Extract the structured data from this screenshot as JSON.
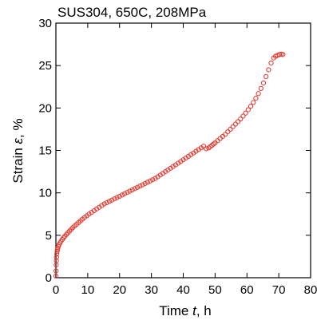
{
  "chart_data": {
    "type": "scatter",
    "title": "SUS304, 650C,  208MPa",
    "xlabel": {
      "prefix": "Time",
      "symbol": "t",
      "unit": ", h"
    },
    "ylabel": {
      "prefix": "Strain",
      "symbol": "ε",
      "unit": ",  %"
    },
    "xlim": [
      0,
      80
    ],
    "ylim": [
      0,
      30
    ],
    "xticks": [
      0,
      10,
      20,
      30,
      40,
      50,
      60,
      70,
      80
    ],
    "yticks": [
      0,
      5,
      10,
      15,
      20,
      25,
      30
    ],
    "grid": false,
    "marker": "open-circle",
    "series_color": "#e8342a",
    "x": [
      0,
      0.05,
      0.1,
      0.15,
      0.2,
      0.3,
      0.4,
      0.5,
      0.6,
      0.8,
      1.0,
      1.3,
      1.6,
      2.0,
      2.4,
      2.8,
      3.3,
      3.8,
      4.3,
      4.8,
      5.3,
      5.9,
      6.5,
      7.1,
      7.7,
      8.3,
      9.0,
      9.7,
      10.4,
      11.2,
      12.0,
      12.8,
      13.6,
      14.4,
      15.2,
      16.0,
      16.8,
      17.6,
      18.4,
      19.2,
      20.0,
      20.8,
      21.6,
      22.4,
      23.2,
      24.0,
      24.8,
      25.6,
      26.4,
      27.2,
      28.0,
      28.8,
      29.6,
      30.4,
      31.2,
      32.0,
      32.8,
      33.6,
      34.4,
      35.2,
      36.0,
      36.8,
      37.6,
      38.4,
      39.2,
      40.0,
      40.8,
      41.6,
      42.4,
      43.2,
      44.0,
      44.8,
      45.6,
      46.4,
      47.2,
      48.0,
      48.5,
      49.0,
      49.5,
      50.0,
      50.8,
      51.6,
      52.4,
      53.2,
      54.0,
      54.8,
      55.6,
      56.4,
      57.2,
      58.0,
      58.8,
      59.6,
      60.4,
      61.2,
      62.0,
      62.8,
      63.6,
      64.4,
      65.2,
      66.0,
      66.8,
      67.6,
      68.4,
      69.0,
      69.6,
      70.2,
      70.8,
      71.3
    ],
    "y": [
      0.2,
      0.8,
      1.5,
      2.0,
      2.4,
      2.8,
      3.1,
      3.3,
      3.5,
      3.7,
      3.9,
      4.1,
      4.3,
      4.5,
      4.7,
      4.9,
      5.1,
      5.3,
      5.5,
      5.7,
      5.9,
      6.1,
      6.3,
      6.5,
      6.7,
      6.9,
      7.1,
      7.3,
      7.5,
      7.7,
      7.9,
      8.1,
      8.3,
      8.5,
      8.7,
      8.85,
      9.0,
      9.15,
      9.3,
      9.45,
      9.6,
      9.75,
      9.9,
      10.05,
      10.2,
      10.35,
      10.5,
      10.65,
      10.8,
      10.95,
      11.1,
      11.25,
      11.4,
      11.55,
      11.7,
      11.9,
      12.1,
      12.3,
      12.5,
      12.7,
      12.9,
      13.1,
      13.3,
      13.5,
      13.7,
      13.9,
      14.1,
      14.3,
      14.5,
      14.7,
      14.9,
      15.1,
      15.3,
      15.5,
      15.2,
      15.3,
      15.45,
      15.6,
      15.75,
      15.9,
      16.15,
      16.4,
      16.65,
      16.9,
      17.2,
      17.5,
      17.8,
      18.1,
      18.4,
      18.7,
      19.05,
      19.4,
      19.8,
      20.2,
      20.65,
      21.15,
      21.7,
      22.3,
      22.95,
      23.7,
      24.5,
      25.3,
      25.9,
      26.1,
      26.2,
      26.3,
      26.35,
      26.3
    ]
  }
}
